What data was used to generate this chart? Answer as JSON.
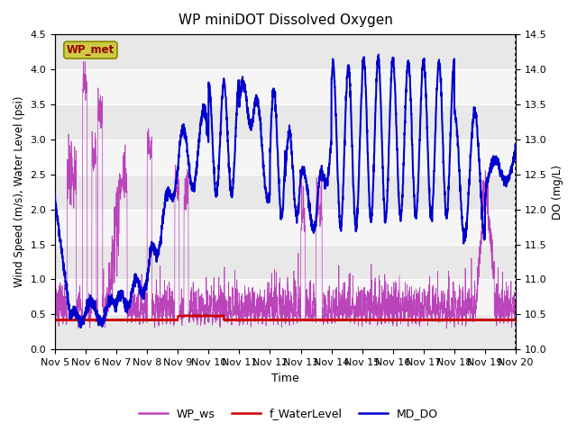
{
  "title": "WP miniDOT Dissolved Oxygen",
  "xlabel": "Time",
  "ylabel_left": "Wind Speed (m/s), Water Level (psi)",
  "ylabel_right": "DO (mg/L)",
  "xlim": [
    0,
    15
  ],
  "ylim_left": [
    0.0,
    4.5
  ],
  "ylim_right": [
    10.0,
    14.5
  ],
  "xtick_labels": [
    "Nov 5",
    "Nov 6",
    "Nov 7",
    "Nov 8",
    "Nov 9",
    "Nov 10",
    "Nov 11",
    "Nov 12",
    "Nov 13",
    "Nov 14",
    "Nov 15",
    "Nov 16",
    "Nov 17",
    "Nov 18",
    "Nov 19",
    "Nov 20"
  ],
  "xtick_positions": [
    0,
    1,
    2,
    3,
    4,
    5,
    6,
    7,
    8,
    9,
    10,
    11,
    12,
    13,
    14,
    15
  ],
  "ytick_left": [
    0.0,
    0.5,
    1.0,
    1.5,
    2.0,
    2.5,
    3.0,
    3.5,
    4.0,
    4.5
  ],
  "ytick_right": [
    10.0,
    10.5,
    11.0,
    11.5,
    12.0,
    12.5,
    13.0,
    13.5,
    14.0,
    14.5
  ],
  "bg_color": "#f0f0f0",
  "band_color_light": "#e8e8e8",
  "band_color_white": "#f8f8f8",
  "wp_ws_color": "#bb44bb",
  "f_water_color": "#cc0000",
  "md_do_color": "#0000cc",
  "legend_labels": [
    "WP_ws",
    "f_WaterLevel",
    "MD_DO"
  ],
  "legend_colors": [
    "#bb44bb",
    "#cc0000",
    "#0000cc"
  ],
  "wp_met_box_facecolor": "#cccc44",
  "wp_met_text_color": "#990000",
  "wp_met_label": "WP_met",
  "n_points": 3000
}
